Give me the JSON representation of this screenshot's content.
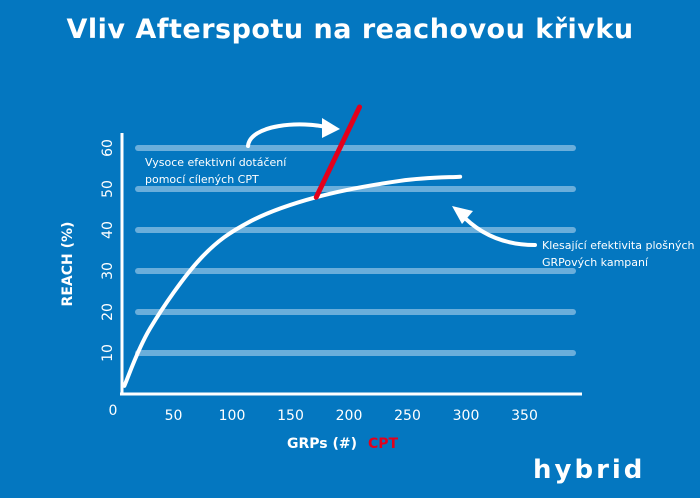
{
  "chart_data": {
    "type": "line",
    "title": "Vliv Afterspotu na reachovou křivku",
    "xlabel": "GRPs (#)",
    "xlabel_extra": "CPT",
    "ylabel": "REACH (%)",
    "xlim": [
      0,
      390
    ],
    "ylim": [
      0,
      65
    ],
    "xticks": [
      0,
      50,
      100,
      150,
      200,
      250,
      300,
      350
    ],
    "yticks": [
      10,
      20,
      30,
      40,
      50,
      60
    ],
    "grid": true,
    "series": [
      {
        "color": "#ffffff",
        "x": [
          8,
          30,
          73,
          115,
          172,
          244,
          295
        ],
        "y": [
          2,
          16,
          33,
          42,
          48,
          52,
          53
        ]
      },
      {
        "color": "#e3001b",
        "x": [
          172,
          209
        ],
        "y": [
          48,
          70
        ]
      }
    ],
    "annotations": [
      {
        "text_lines": [
          "Vysoce efektivní dotáčení",
          "pomocí cílených CPT"
        ]
      },
      {
        "text_lines": [
          "Klesající efektivita  plošných",
          "GRPových kampaní"
        ]
      }
    ],
    "colors": {
      "background": "#0477c0",
      "grid": "#6aaedb",
      "cpt": "#e3001b"
    }
  },
  "logo": "hybrid"
}
